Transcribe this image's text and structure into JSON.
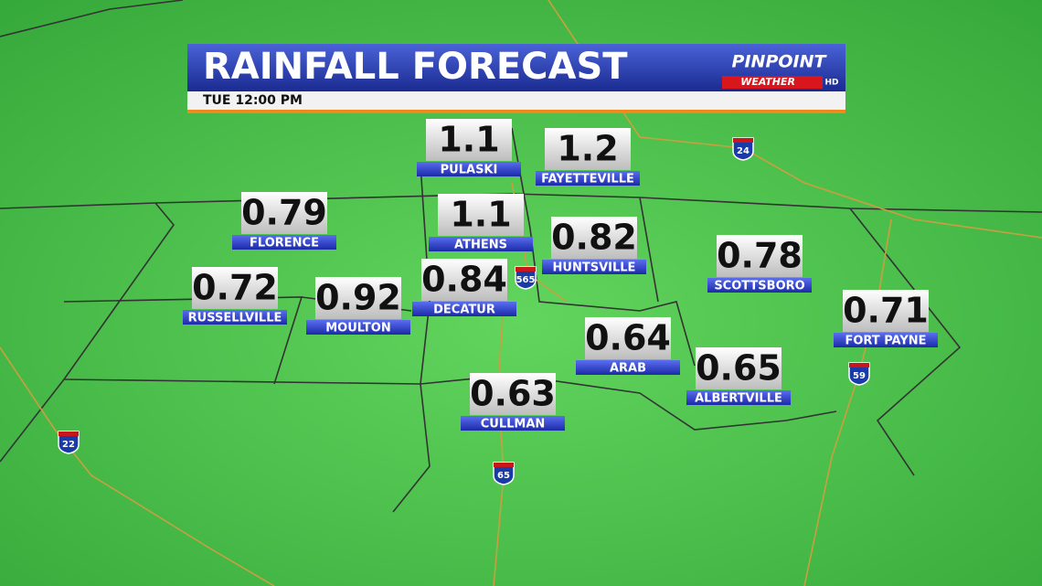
{
  "header": {
    "title": "RAINFALL FORECAST",
    "time": "TUE 12:00 PM",
    "logo": {
      "brand": "PINPOINT",
      "sub": "WEATHER",
      "badge": "HD"
    }
  },
  "cities": [
    {
      "name": "PULASKI",
      "value": 1.1
    },
    {
      "name": "FAYETTEVILLE",
      "value": 1.2
    },
    {
      "name": "FLORENCE",
      "value": 0.79
    },
    {
      "name": "ATHENS",
      "value": 1.1
    },
    {
      "name": "HUNTSVILLE",
      "value": 0.82
    },
    {
      "name": "SCOTTSBORO",
      "value": 0.78
    },
    {
      "name": "RUSSELLVILLE",
      "value": 0.72
    },
    {
      "name": "MOULTON",
      "value": 0.92
    },
    {
      "name": "DECATUR",
      "value": 0.84
    },
    {
      "name": "FORT PAYNE",
      "value": 0.71
    },
    {
      "name": "ARAB",
      "value": 0.64
    },
    {
      "name": "ALBERTVILLE",
      "value": 0.65
    },
    {
      "name": "CULLMAN",
      "value": 0.63
    }
  ],
  "highways": [
    "24",
    "565",
    "22",
    "65",
    "59"
  ]
}
